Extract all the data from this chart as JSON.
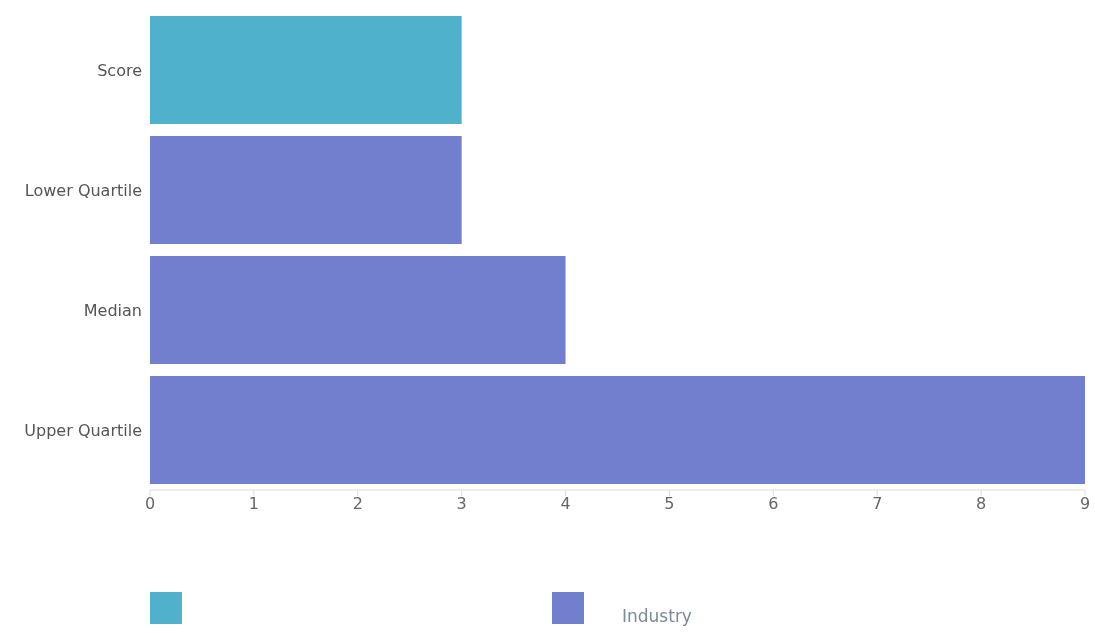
{
  "chart_data": {
    "type": "bar",
    "orientation": "horizontal",
    "stacked": true,
    "categories": [
      "Score",
      "Lower Quartile",
      "Median",
      "Upper Quartile"
    ],
    "series": [
      {
        "color": "#4fb1cb",
        "values": [
          3,
          null,
          null,
          null
        ]
      },
      {
        "name": "Industry",
        "color": "#727fce",
        "values": [
          null,
          3,
          4,
          9
        ]
      }
    ],
    "xlim": [
      0,
      9
    ],
    "xticks": [
      0,
      1,
      2,
      3,
      4,
      5,
      6,
      7,
      8,
      9
    ],
    "grid": false,
    "legend": "bottom"
  }
}
